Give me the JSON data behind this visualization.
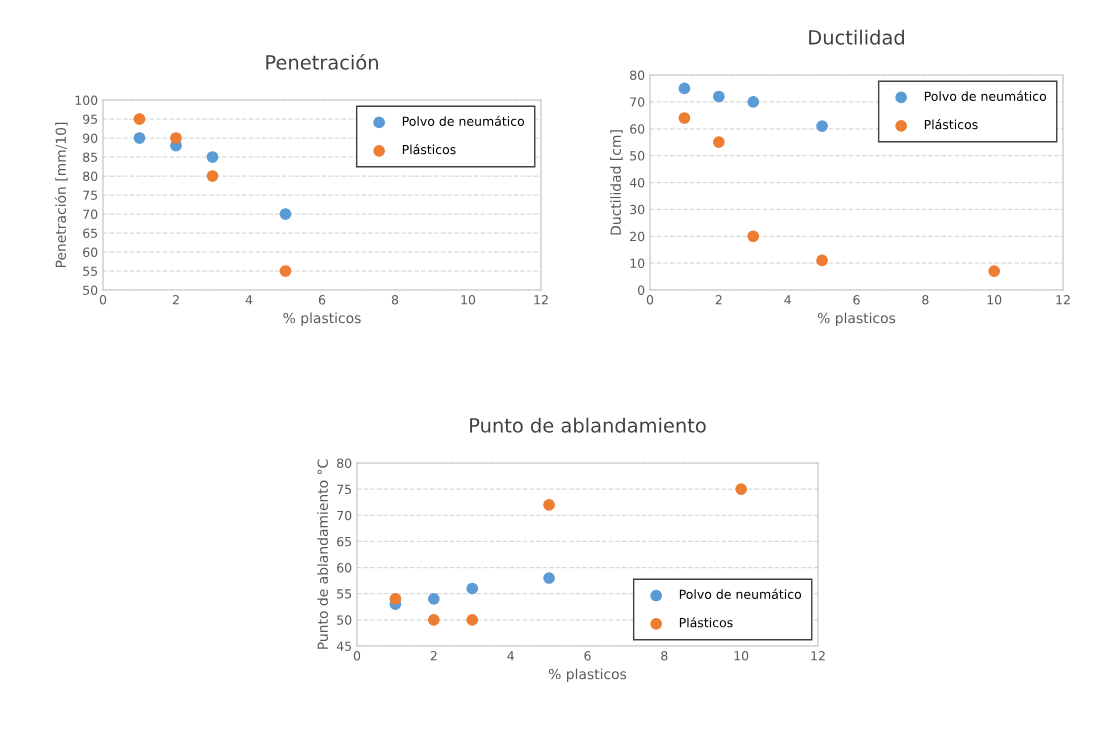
{
  "chart_data": [
    {
      "type": "scatter",
      "title": "Penetración",
      "xlabel": "% plasticos",
      "ylabel": "Penetración [mm/10]",
      "xlim": [
        0,
        12
      ],
      "xticks": [
        0,
        2,
        4,
        6,
        8,
        10,
        12
      ],
      "ylim": [
        50,
        100
      ],
      "yticks": [
        50,
        55,
        60,
        65,
        70,
        75,
        80,
        85,
        90,
        95,
        100
      ],
      "grid": "y",
      "legend": "top right",
      "marker": "circle",
      "series": [
        {
          "name": "Polvo de neumático",
          "color": "#5b9bd5",
          "x": [
            1,
            2,
            3,
            5
          ],
          "values": [
            90,
            88,
            85,
            70
          ]
        },
        {
          "name": "Plásticos",
          "color": "#ed7d31",
          "x": [
            1,
            2,
            3,
            5
          ],
          "values": [
            95,
            90,
            80,
            55
          ]
        }
      ]
    },
    {
      "type": "scatter",
      "title": "Ductilidad",
      "xlabel": "% plasticos",
      "ylabel": "Ductilidad [cm]",
      "xlim": [
        0,
        12
      ],
      "xticks": [
        0,
        2,
        4,
        6,
        8,
        10,
        12
      ],
      "ylim": [
        0,
        80
      ],
      "yticks": [
        0,
        10,
        20,
        30,
        40,
        50,
        60,
        70,
        80
      ],
      "grid": "y",
      "legend": "top right",
      "marker": "circle",
      "series": [
        {
          "name": "Polvo de neumático",
          "color": "#5b9bd5",
          "x": [
            1,
            2,
            3,
            5
          ],
          "values": [
            75,
            72,
            70,
            61
          ]
        },
        {
          "name": "Plásticos",
          "color": "#ed7d31",
          "x": [
            1,
            2,
            3,
            5,
            10
          ],
          "values": [
            64,
            55,
            20,
            11,
            7
          ]
        }
      ]
    },
    {
      "type": "scatter",
      "title": "Punto de ablandamiento",
      "xlabel": "% plasticos",
      "ylabel": "Punto de ablandamiento °C",
      "xlim": [
        0,
        12
      ],
      "xticks": [
        0,
        2,
        4,
        6,
        8,
        10,
        12
      ],
      "ylim": [
        45,
        80
      ],
      "yticks": [
        45,
        50,
        55,
        60,
        65,
        70,
        75,
        80
      ],
      "grid": "y",
      "legend": "bottom right",
      "marker": "circle",
      "series": [
        {
          "name": "Polvo de neumático",
          "color": "#5b9bd5",
          "x": [
            1,
            2,
            3,
            5
          ],
          "values": [
            53,
            54,
            56,
            58
          ]
        },
        {
          "name": "Plásticos",
          "color": "#ed7d31",
          "x": [
            1,
            2,
            3,
            5,
            10
          ],
          "values": [
            54,
            50,
            50,
            72,
            75
          ]
        }
      ]
    }
  ]
}
